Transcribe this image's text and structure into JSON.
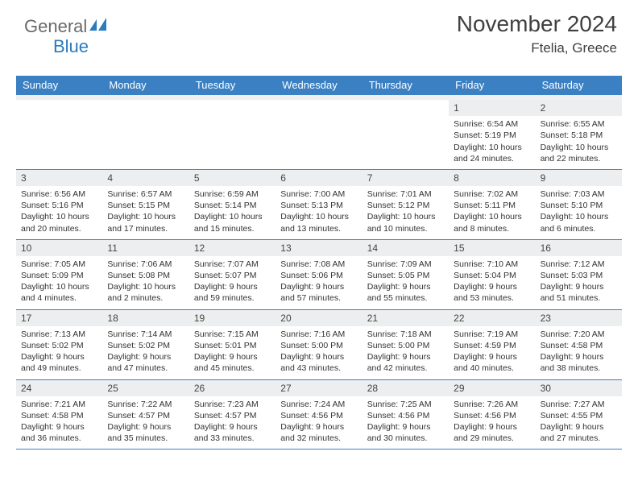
{
  "brand": {
    "word1": "General",
    "word2": "Blue"
  },
  "title": {
    "month": "November 2024",
    "location": "Ftelia, Greece"
  },
  "colors": {
    "header_bg": "#3a80c3",
    "header_text": "#ffffff",
    "daybar_bg": "#eceeef",
    "border": "#3a80c3",
    "text": "#333333",
    "brand_grey": "#6a6a6a",
    "brand_blue": "#2a7bc0"
  },
  "typography": {
    "title_fontsize": 28,
    "location_fontsize": 17,
    "dayhead_fontsize": 13,
    "cell_fontsize": 10.5,
    "daynum_fontsize": 12
  },
  "dayhead": [
    "Sunday",
    "Monday",
    "Tuesday",
    "Wednesday",
    "Thursday",
    "Friday",
    "Saturday"
  ],
  "weeks": [
    [
      null,
      null,
      null,
      null,
      null,
      {
        "n": "1",
        "sr": "Sunrise: 6:54 AM",
        "ss": "Sunset: 5:19 PM",
        "dl1": "Daylight: 10 hours",
        "dl2": "and 24 minutes."
      },
      {
        "n": "2",
        "sr": "Sunrise: 6:55 AM",
        "ss": "Sunset: 5:18 PM",
        "dl1": "Daylight: 10 hours",
        "dl2": "and 22 minutes."
      }
    ],
    [
      {
        "n": "3",
        "sr": "Sunrise: 6:56 AM",
        "ss": "Sunset: 5:16 PM",
        "dl1": "Daylight: 10 hours",
        "dl2": "and 20 minutes."
      },
      {
        "n": "4",
        "sr": "Sunrise: 6:57 AM",
        "ss": "Sunset: 5:15 PM",
        "dl1": "Daylight: 10 hours",
        "dl2": "and 17 minutes."
      },
      {
        "n": "5",
        "sr": "Sunrise: 6:59 AM",
        "ss": "Sunset: 5:14 PM",
        "dl1": "Daylight: 10 hours",
        "dl2": "and 15 minutes."
      },
      {
        "n": "6",
        "sr": "Sunrise: 7:00 AM",
        "ss": "Sunset: 5:13 PM",
        "dl1": "Daylight: 10 hours",
        "dl2": "and 13 minutes."
      },
      {
        "n": "7",
        "sr": "Sunrise: 7:01 AM",
        "ss": "Sunset: 5:12 PM",
        "dl1": "Daylight: 10 hours",
        "dl2": "and 10 minutes."
      },
      {
        "n": "8",
        "sr": "Sunrise: 7:02 AM",
        "ss": "Sunset: 5:11 PM",
        "dl1": "Daylight: 10 hours",
        "dl2": "and 8 minutes."
      },
      {
        "n": "9",
        "sr": "Sunrise: 7:03 AM",
        "ss": "Sunset: 5:10 PM",
        "dl1": "Daylight: 10 hours",
        "dl2": "and 6 minutes."
      }
    ],
    [
      {
        "n": "10",
        "sr": "Sunrise: 7:05 AM",
        "ss": "Sunset: 5:09 PM",
        "dl1": "Daylight: 10 hours",
        "dl2": "and 4 minutes."
      },
      {
        "n": "11",
        "sr": "Sunrise: 7:06 AM",
        "ss": "Sunset: 5:08 PM",
        "dl1": "Daylight: 10 hours",
        "dl2": "and 2 minutes."
      },
      {
        "n": "12",
        "sr": "Sunrise: 7:07 AM",
        "ss": "Sunset: 5:07 PM",
        "dl1": "Daylight: 9 hours",
        "dl2": "and 59 minutes."
      },
      {
        "n": "13",
        "sr": "Sunrise: 7:08 AM",
        "ss": "Sunset: 5:06 PM",
        "dl1": "Daylight: 9 hours",
        "dl2": "and 57 minutes."
      },
      {
        "n": "14",
        "sr": "Sunrise: 7:09 AM",
        "ss": "Sunset: 5:05 PM",
        "dl1": "Daylight: 9 hours",
        "dl2": "and 55 minutes."
      },
      {
        "n": "15",
        "sr": "Sunrise: 7:10 AM",
        "ss": "Sunset: 5:04 PM",
        "dl1": "Daylight: 9 hours",
        "dl2": "and 53 minutes."
      },
      {
        "n": "16",
        "sr": "Sunrise: 7:12 AM",
        "ss": "Sunset: 5:03 PM",
        "dl1": "Daylight: 9 hours",
        "dl2": "and 51 minutes."
      }
    ],
    [
      {
        "n": "17",
        "sr": "Sunrise: 7:13 AM",
        "ss": "Sunset: 5:02 PM",
        "dl1": "Daylight: 9 hours",
        "dl2": "and 49 minutes."
      },
      {
        "n": "18",
        "sr": "Sunrise: 7:14 AM",
        "ss": "Sunset: 5:02 PM",
        "dl1": "Daylight: 9 hours",
        "dl2": "and 47 minutes."
      },
      {
        "n": "19",
        "sr": "Sunrise: 7:15 AM",
        "ss": "Sunset: 5:01 PM",
        "dl1": "Daylight: 9 hours",
        "dl2": "and 45 minutes."
      },
      {
        "n": "20",
        "sr": "Sunrise: 7:16 AM",
        "ss": "Sunset: 5:00 PM",
        "dl1": "Daylight: 9 hours",
        "dl2": "and 43 minutes."
      },
      {
        "n": "21",
        "sr": "Sunrise: 7:18 AM",
        "ss": "Sunset: 5:00 PM",
        "dl1": "Daylight: 9 hours",
        "dl2": "and 42 minutes."
      },
      {
        "n": "22",
        "sr": "Sunrise: 7:19 AM",
        "ss": "Sunset: 4:59 PM",
        "dl1": "Daylight: 9 hours",
        "dl2": "and 40 minutes."
      },
      {
        "n": "23",
        "sr": "Sunrise: 7:20 AM",
        "ss": "Sunset: 4:58 PM",
        "dl1": "Daylight: 9 hours",
        "dl2": "and 38 minutes."
      }
    ],
    [
      {
        "n": "24",
        "sr": "Sunrise: 7:21 AM",
        "ss": "Sunset: 4:58 PM",
        "dl1": "Daylight: 9 hours",
        "dl2": "and 36 minutes."
      },
      {
        "n": "25",
        "sr": "Sunrise: 7:22 AM",
        "ss": "Sunset: 4:57 PM",
        "dl1": "Daylight: 9 hours",
        "dl2": "and 35 minutes."
      },
      {
        "n": "26",
        "sr": "Sunrise: 7:23 AM",
        "ss": "Sunset: 4:57 PM",
        "dl1": "Daylight: 9 hours",
        "dl2": "and 33 minutes."
      },
      {
        "n": "27",
        "sr": "Sunrise: 7:24 AM",
        "ss": "Sunset: 4:56 PM",
        "dl1": "Daylight: 9 hours",
        "dl2": "and 32 minutes."
      },
      {
        "n": "28",
        "sr": "Sunrise: 7:25 AM",
        "ss": "Sunset: 4:56 PM",
        "dl1": "Daylight: 9 hours",
        "dl2": "and 30 minutes."
      },
      {
        "n": "29",
        "sr": "Sunrise: 7:26 AM",
        "ss": "Sunset: 4:56 PM",
        "dl1": "Daylight: 9 hours",
        "dl2": "and 29 minutes."
      },
      {
        "n": "30",
        "sr": "Sunrise: 7:27 AM",
        "ss": "Sunset: 4:55 PM",
        "dl1": "Daylight: 9 hours",
        "dl2": "and 27 minutes."
      }
    ]
  ]
}
